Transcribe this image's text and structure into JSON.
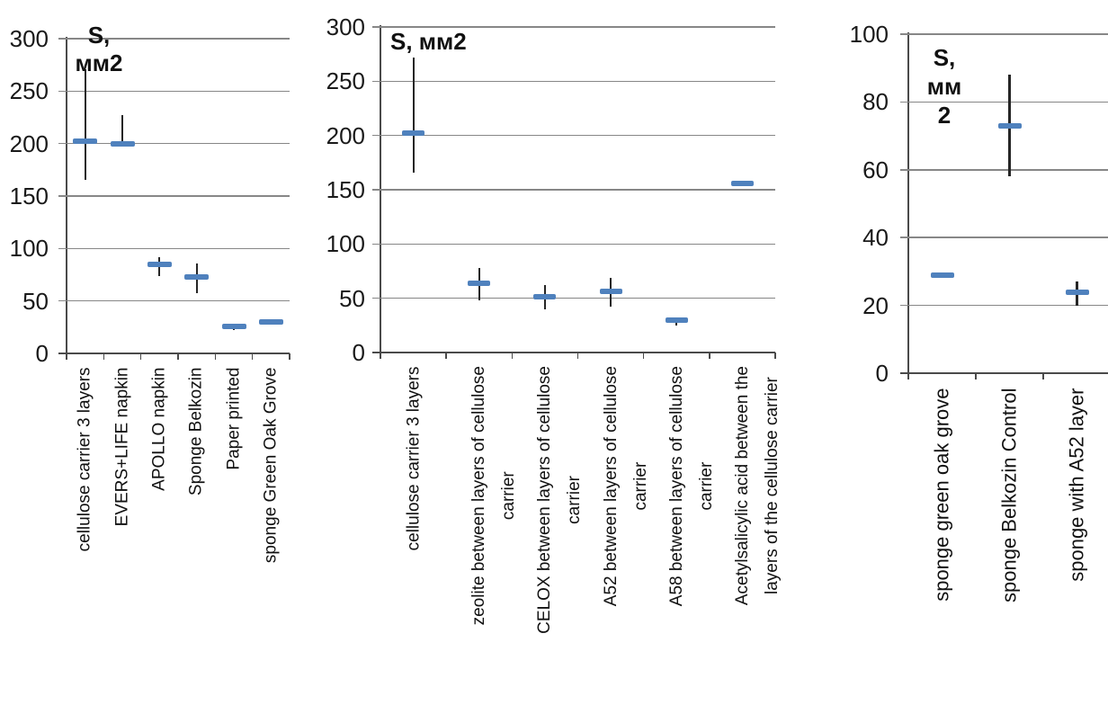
{
  "page": {
    "background": "#ffffff"
  },
  "colors": {
    "marker": "#4f81bd",
    "grid": "#878787",
    "axis": "#4a4a4a",
    "error_bar": "#262626",
    "label_text": "#1a1a1a"
  },
  "chart_data": [
    {
      "type": "scatter",
      "title": "S, мм2",
      "title_lines": [
        "S,",
        "мм2"
      ],
      "ylabel": "S, мм2",
      "xlabel": "",
      "ylim": [
        0,
        300
      ],
      "yticks": [
        0,
        50,
        100,
        150,
        200,
        250,
        300
      ],
      "grid": true,
      "legend_position": "none",
      "categories": [
        [
          "cellulose carrier 3 layers"
        ],
        [
          "EVERS+LIFE napkin"
        ],
        [
          "APOLLO napkin"
        ],
        [
          "Sponge Belkozin"
        ],
        [
          "Paper printed"
        ],
        [
          "sponge Green Oak Grove"
        ]
      ],
      "points": [
        {
          "value": 202,
          "low": 165,
          "high": 271
        },
        {
          "value": 200,
          "low": 200,
          "high": 227
        },
        {
          "value": 85,
          "low": 74,
          "high": 92
        },
        {
          "value": 73,
          "low": 57,
          "high": 86
        },
        {
          "value": 26,
          "low": 22,
          "high": 27
        },
        {
          "value": 30,
          "low": 30,
          "high": 30
        }
      ]
    },
    {
      "type": "scatter",
      "title": "S, мм2",
      "title_lines": [
        "S, мм2"
      ],
      "ylabel": "S, мм2",
      "xlabel": "",
      "ylim": [
        0,
        300
      ],
      "yticks": [
        0,
        50,
        100,
        150,
        200,
        250,
        300
      ],
      "grid": true,
      "legend_position": "none",
      "categories": [
        [
          "cellulose carrier 3 layers"
        ],
        [
          "zeolite between layers of cellulose",
          "carrier"
        ],
        [
          "CELOX between layers of cellulose",
          "carrier"
        ],
        [
          "A52 between layers of cellulose",
          "carrier"
        ],
        [
          "A58 between layers of cellulose",
          "carrier"
        ],
        [
          "Acetylsalicylic acid between the",
          "layers of the cellulose carrier"
        ]
      ],
      "points": [
        {
          "value": 202,
          "low": 166,
          "high": 272
        },
        {
          "value": 64,
          "low": 48,
          "high": 78
        },
        {
          "value": 51,
          "low": 40,
          "high": 62
        },
        {
          "value": 56,
          "low": 42,
          "high": 69
        },
        {
          "value": 30,
          "low": 25,
          "high": 31
        },
        {
          "value": 156,
          "low": 156,
          "high": 156
        }
      ]
    },
    {
      "type": "scatter",
      "title": "S, мм 2",
      "title_lines": [
        "S,",
        "мм",
        "2"
      ],
      "ylabel": "S, мм 2",
      "xlabel": "",
      "ylim": [
        0,
        100
      ],
      "yticks": [
        0,
        20,
        40,
        60,
        80,
        100
      ],
      "grid": true,
      "legend_position": "none",
      "categories": [
        [
          "sponge green oak grove"
        ],
        [
          "sponge Belkozin Control"
        ],
        [
          "sponge with A52 layer"
        ]
      ],
      "points": [
        {
          "value": 29,
          "low": 29,
          "high": 29
        },
        {
          "value": 73,
          "low": 58,
          "high": 88
        },
        {
          "value": 24,
          "low": 20,
          "high": 27
        }
      ]
    }
  ]
}
